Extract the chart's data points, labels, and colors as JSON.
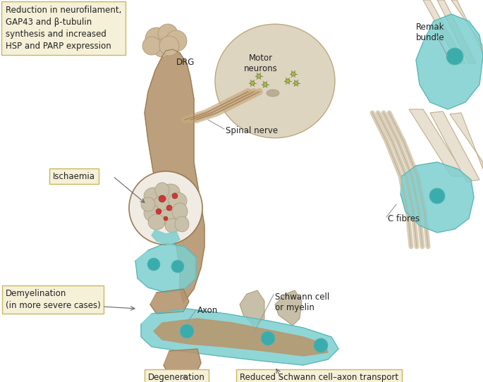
{
  "bg_color": "#ffffff",
  "tan_color": "#b5956e",
  "tan_light": "#c9aa88",
  "tan_dark": "#9a7a55",
  "teal_color": "#7dcfcf",
  "teal_dark": "#5ab5b5",
  "teal_spot": "#3aacac",
  "nerve_fill": "#e8ddd0",
  "nerve_dark": "#c8b89a",
  "spinal_fill": "#d4c4a8",
  "label_bg": "#f5f0d8",
  "label_border": "#c8b860",
  "red_color": "#cc2222",
  "line_color": "#666666",
  "text_color": "#222222",
  "motor_fill": "#e0d8c8",
  "motor_circle_fill": "#d8cdb8",
  "green_neuron": "#aabb44",
  "annotations": {
    "top_left_box": "Reduction in neurofilament,\nGAP43 and β-tubulin\nsynthesis and increased\nHSP and PARP expression",
    "drg": "DRG",
    "motor_neurons": "Motor\nneurons",
    "remak_bundle": "Remak\nbundle",
    "spinal_nerve": "Spinal nerve",
    "ischaemia": "Ischaemia",
    "c_fibres": "C fibres",
    "schwann": "Schwann cell\nor myelin",
    "axon": "Axon",
    "demyelination": "Demyelination\n(in more severe cases)",
    "degeneration": "Degeneration",
    "reduced_transport": "Reduced Schwann cell–axon transport"
  }
}
